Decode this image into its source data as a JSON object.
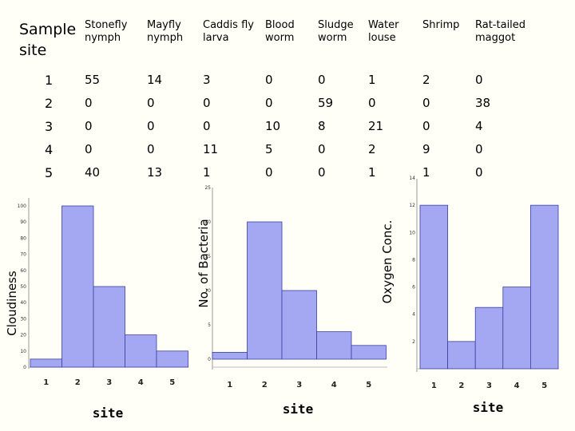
{
  "table": {
    "header": [
      "Sample site",
      "Stonefly nymph",
      "Mayfly nymph",
      "Caddis fly larva",
      "Blood worm",
      "Sludge worm",
      "Water louse",
      "Shrimp",
      "Rat-tailed maggot"
    ],
    "rows": [
      [
        "1",
        "55",
        "14",
        "3",
        "0",
        "0",
        "1",
        "2",
        "0"
      ],
      [
        "2",
        "0",
        "0",
        "0",
        "0",
        "59",
        "0",
        "0",
        "38"
      ],
      [
        "3",
        "0",
        "0",
        "0",
        "10",
        "8",
        "21",
        "0",
        "4"
      ],
      [
        "4",
        "0",
        "0",
        "11",
        "5",
        "0",
        "2",
        "9",
        "0"
      ],
      [
        "5",
        "40",
        "13",
        "1",
        "0",
        "0",
        "1",
        "1",
        "0"
      ]
    ]
  },
  "chart_data": [
    {
      "type": "bar",
      "ylabel": "Cloudiness",
      "xlabel": "site",
      "categories": [
        "1",
        "2",
        "3",
        "4",
        "5"
      ],
      "values": [
        5,
        100,
        50,
        20,
        10
      ],
      "ylim": [
        0,
        100
      ],
      "yticks": [
        0,
        10,
        20,
        30,
        40,
        50,
        60,
        70,
        80,
        90,
        100
      ]
    },
    {
      "type": "bar",
      "ylabel": "No. of Bacteria",
      "xlabel": "site",
      "categories": [
        "1",
        "2",
        "3",
        "4",
        "5"
      ],
      "values": [
        1,
        20,
        10,
        4,
        2
      ],
      "ylim": [
        0,
        25
      ],
      "yticks": [
        0,
        5,
        10,
        15,
        20,
        25
      ]
    },
    {
      "type": "bar",
      "ylabel": "Oxygen Conc.",
      "xlabel": "site",
      "categories": [
        "1",
        "2",
        "3",
        "4",
        "5"
      ],
      "values": [
        12,
        2,
        4.5,
        6,
        12
      ],
      "ylim": [
        0,
        14
      ],
      "yticks": [
        2,
        4,
        6,
        8,
        10,
        12,
        14
      ]
    }
  ]
}
